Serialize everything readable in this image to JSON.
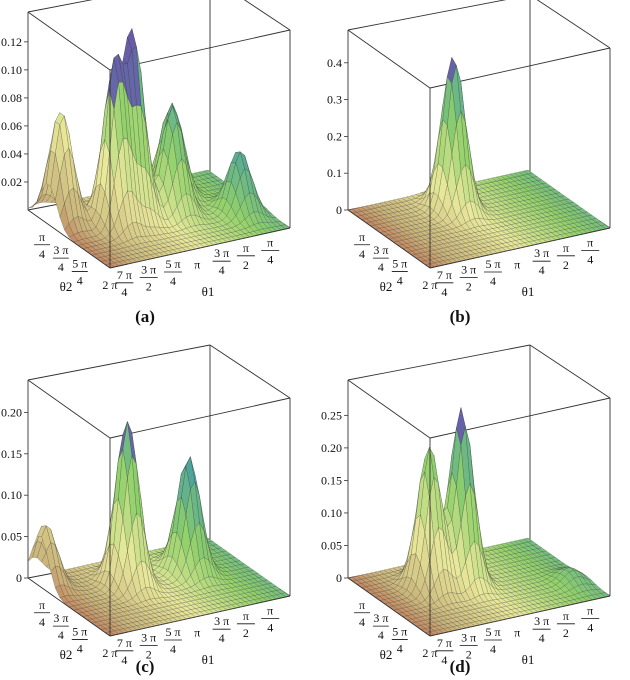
{
  "figure": {
    "axes": {
      "theta2_label": "θ2",
      "theta1_label": "θ1",
      "theta2_ticks": [
        {
          "num": "π",
          "den": "4"
        },
        {
          "num": "3 π",
          "den": "4"
        },
        {
          "num": "5 π",
          "den": "4"
        },
        {
          "num": "2 π",
          "den": ""
        }
      ],
      "theta1_ticks": [
        {
          "num": "7 π",
          "den": "4"
        },
        {
          "num": "3 π",
          "den": "2"
        },
        {
          "num": "5 π",
          "den": "4"
        },
        {
          "num": "π",
          "den": ""
        },
        {
          "num": "3 π",
          "den": "4"
        },
        {
          "num": "π",
          "den": "2"
        },
        {
          "num": "π",
          "den": "4"
        }
      ]
    },
    "colormap": [
      "#b8443c",
      "#c9b47a",
      "#e8e89a",
      "#8fd06a",
      "#4aa0a0",
      "#6a5aa8"
    ]
  },
  "chart_data": [
    {
      "type": "surface3d",
      "panel_label": "(a)",
      "zlim": [
        0,
        0.13
      ],
      "z_ticks": [
        "0.02",
        "0.04",
        "0.06",
        "0.08",
        "0.10",
        "0.12"
      ],
      "peaks": [
        {
          "theta1_frac": 0.93,
          "theta2_frac": 0.75,
          "z": 0.08
        },
        {
          "theta1_frac": 0.72,
          "theta2_frac": 0.55,
          "z": 0.115
        },
        {
          "theta1_frac": 0.6,
          "theta2_frac": 0.6,
          "z": 0.13
        },
        {
          "theta1_frac": 0.4,
          "theta2_frac": 0.55,
          "z": 0.075
        },
        {
          "theta1_frac": 0.3,
          "theta2_frac": 0.78,
          "z": 0.065
        },
        {
          "theta1_frac": 0.12,
          "theta2_frac": 0.35,
          "z": 0.045
        }
      ]
    },
    {
      "type": "surface3d",
      "panel_label": "(b)",
      "zlim": [
        0,
        0.45
      ],
      "z_ticks": [
        "0",
        "0.1",
        "0.2",
        "0.3",
        "0.4"
      ],
      "peaks": [
        {
          "theta1_frac": 0.55,
          "theta2_frac": 0.7,
          "z": 0.42
        }
      ]
    },
    {
      "type": "surface3d",
      "panel_label": "(c)",
      "zlim": [
        0,
        0.22
      ],
      "z_ticks": [
        "0",
        "0.05",
        "0.10",
        "0.15",
        "0.20"
      ],
      "peaks": [
        {
          "theta1_frac": 0.97,
          "theta2_frac": 0.85,
          "z": 0.075
        },
        {
          "theta1_frac": 0.62,
          "theta2_frac": 0.62,
          "z": 0.2
        },
        {
          "theta1_frac": 0.28,
          "theta2_frac": 0.62,
          "z": 0.14
        }
      ]
    },
    {
      "type": "surface3d",
      "panel_label": "(d)",
      "zlim": [
        0,
        0.28
      ],
      "z_ticks": [
        "0",
        "0.05",
        "0.10",
        "0.15",
        "0.20",
        "0.25"
      ],
      "peaks": [
        {
          "theta1_frac": 0.72,
          "theta2_frac": 0.62,
          "z": 0.22
        },
        {
          "theta1_frac": 0.55,
          "theta2_frac": 0.6,
          "z": 0.27
        },
        {
          "theta1_frac": 0.08,
          "theta2_frac": 0.3,
          "z": 0.02
        }
      ]
    }
  ]
}
